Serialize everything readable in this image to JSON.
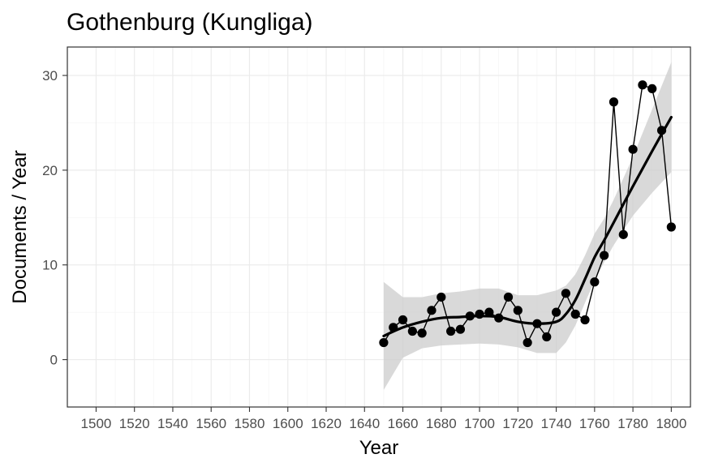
{
  "chart_data": {
    "type": "line",
    "title": "Gothenburg (Kungliga)",
    "xlabel": "Year",
    "ylabel": "Documents / Year",
    "xlim": [
      1485,
      1810
    ],
    "ylim": [
      -5,
      33
    ],
    "x_ticks": [
      1500,
      1520,
      1540,
      1560,
      1580,
      1600,
      1620,
      1640,
      1660,
      1680,
      1700,
      1720,
      1740,
      1760,
      1780,
      1800
    ],
    "y_ticks": [
      0,
      10,
      20,
      30
    ],
    "grid": true,
    "legend": "none",
    "series": [
      {
        "x": [
          1650,
          1655,
          1660,
          1665,
          1670,
          1675,
          1680,
          1685,
          1690,
          1695,
          1700,
          1705,
          1710,
          1715,
          1720,
          1725,
          1730,
          1735,
          1740,
          1745,
          1750,
          1755,
          1760,
          1765,
          1770,
          1775,
          1780,
          1785,
          1790,
          1795,
          1800
        ],
        "values": [
          1.8,
          3.4,
          4.2,
          3.0,
          2.8,
          5.2,
          6.6,
          3.0,
          3.2,
          4.6,
          4.8,
          5.0,
          4.4,
          6.6,
          5.2,
          1.8,
          3.8,
          2.4,
          5.0,
          7.0,
          4.8,
          4.2,
          8.2,
          11.0,
          27.2,
          13.2,
          22.2,
          29.0,
          28.6,
          24.2,
          14.0
        ]
      }
    ],
    "smooth": {
      "method": "loess",
      "x": [
        1650,
        1660,
        1670,
        1680,
        1690,
        1700,
        1710,
        1720,
        1730,
        1740,
        1745,
        1750,
        1755,
        1760,
        1765,
        1770,
        1780,
        1790,
        1800
      ],
      "fit": [
        2.5,
        3.4,
        4.0,
        4.4,
        4.5,
        4.6,
        4.5,
        4.0,
        3.8,
        4.0,
        4.8,
        6.3,
        8.5,
        10.8,
        12.6,
        14.5,
        18.3,
        22.0,
        25.6
      ],
      "lower": [
        -3.2,
        0.2,
        1.2,
        1.5,
        1.6,
        1.7,
        1.6,
        1.3,
        0.7,
        0.7,
        1.8,
        3.6,
        6.0,
        8.3,
        10.3,
        12.1,
        15.2,
        17.6,
        19.8
      ],
      "upper": [
        8.2,
        6.6,
        6.6,
        7.0,
        7.2,
        7.5,
        7.5,
        6.8,
        6.8,
        7.3,
        7.8,
        9.0,
        11.0,
        13.3,
        14.9,
        16.9,
        21.4,
        26.4,
        31.4
      ],
      "band_color": "#cccccc",
      "line_color": "#000000"
    },
    "point_color": "#000000"
  }
}
